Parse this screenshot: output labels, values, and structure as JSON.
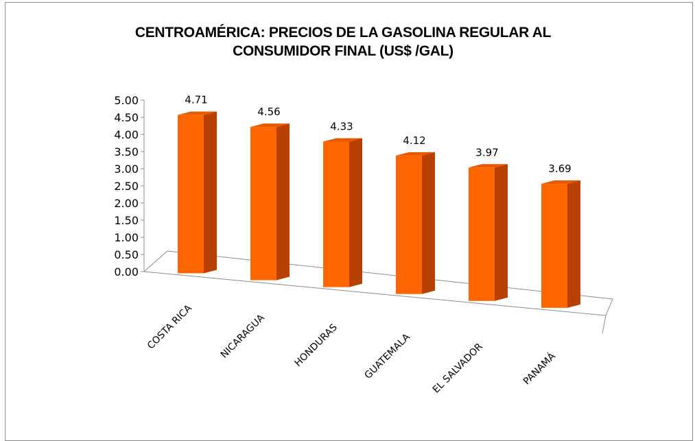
{
  "chart_data": {
    "type": "bar",
    "title_line1": "CENTROAMÉRICA: PRECIOS DE LA GASOLINA REGULAR AL",
    "title_line2": "CONSUMIDOR FINAL (US$ /GAL)",
    "categories": [
      "COSTA RICA",
      "NICARAGUA",
      "HONDURAS",
      "GUATEMALA",
      "EL SALVADOR",
      "PANAMÁ"
    ],
    "values": [
      4.71,
      4.56,
      4.33,
      4.12,
      3.97,
      3.69
    ],
    "ylim": [
      0,
      5
    ],
    "yticks": [
      "0.00",
      "0.50",
      "1.00",
      "1.50",
      "2.00",
      "2.50",
      "3.00",
      "3.50",
      "4.00",
      "4.50",
      "5.00"
    ],
    "three_d": true,
    "grid": false,
    "legend": "none"
  },
  "colors": {
    "bar_front": "#ff6600",
    "bar_side": "#b84000",
    "bar_top": "#e85a00",
    "axis": "#8c8c8c"
  }
}
